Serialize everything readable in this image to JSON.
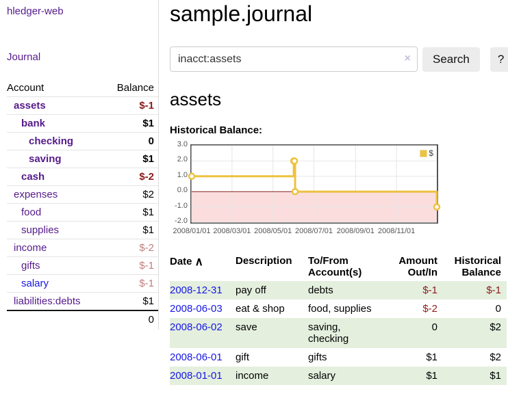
{
  "sidebar": {
    "brand": "hledger-web",
    "nav": {
      "journal_label": "Journal"
    },
    "accounts_table": {
      "headers": {
        "account": "Account",
        "balance": "Balance"
      },
      "rows": [
        {
          "name": "assets",
          "depth": 1,
          "bold": true,
          "balance": "$-1",
          "negative": "strong"
        },
        {
          "name": "bank",
          "depth": 2,
          "bold": true,
          "balance": "$1",
          "negative": null
        },
        {
          "name": "checking",
          "depth": 3,
          "bold": true,
          "balance": "0",
          "negative": null
        },
        {
          "name": "saving",
          "depth": 3,
          "bold": true,
          "balance": "$1",
          "negative": null
        },
        {
          "name": "cash",
          "depth": 2,
          "bold": true,
          "balance": "$-2",
          "negative": "strong"
        },
        {
          "name": "expenses",
          "depth": 1,
          "bold": false,
          "balance": "$2",
          "negative": null
        },
        {
          "name": "food",
          "depth": 2,
          "bold": false,
          "balance": "$1",
          "negative": null
        },
        {
          "name": "supplies",
          "depth": 2,
          "bold": false,
          "balance": "$1",
          "negative": null
        },
        {
          "name": "income",
          "depth": 1,
          "bold": false,
          "balance": "$-2",
          "negative": "soft"
        },
        {
          "name": "gifts",
          "depth": 2,
          "bold": false,
          "balance": "$-1",
          "negative": "soft"
        },
        {
          "name": "salary",
          "depth": 2,
          "bold": false,
          "balance": "$-1",
          "negative": "soft",
          "link_unvisited": true
        },
        {
          "name": "liabilities:debts",
          "depth": 1,
          "bold": false,
          "balance": "$1",
          "negative": null
        }
      ],
      "total": "0"
    }
  },
  "header": {
    "title": "sample.journal"
  },
  "search": {
    "value": "inacct:assets",
    "clear_icon": "×",
    "button_label": "Search",
    "help_label": "?"
  },
  "account_page": {
    "heading": "assets",
    "chart_label": "Historical Balance:"
  },
  "chart_data": {
    "type": "line",
    "title": "Historical Balance",
    "step": true,
    "legend_position": "top-right",
    "grid": true,
    "x_range": [
      "2008-01-01",
      "2008-12-31"
    ],
    "ylim": [
      -2,
      3
    ],
    "series": [
      {
        "name": "$",
        "color": "#edc240",
        "points": [
          [
            "2008-01-01",
            1
          ],
          [
            "2008-06-01",
            2
          ],
          [
            "2008-06-02",
            2
          ],
          [
            "2008-06-03",
            0
          ],
          [
            "2008-12-31",
            -1
          ]
        ]
      }
    ],
    "y_ticks": [
      {
        "label": "3.0",
        "value": 3
      },
      {
        "label": "2.0",
        "value": 2
      },
      {
        "label": "1.0",
        "value": 1
      },
      {
        "label": "0.0",
        "value": 0
      },
      {
        "label": "-1.0",
        "value": -1
      },
      {
        "label": "-2.0",
        "value": -2
      }
    ],
    "x_ticks": [
      {
        "label": "2008/01/01",
        "date": "2008-01-01"
      },
      {
        "label": "2008/03/01",
        "date": "2008-03-01"
      },
      {
        "label": "2008/05/01",
        "date": "2008-05-01"
      },
      {
        "label": "2008/07/01",
        "date": "2008-07-01"
      },
      {
        "label": "2008/09/01",
        "date": "2008-09-01"
      },
      {
        "label": "2008/11/01",
        "date": "2008-11-01"
      }
    ],
    "colors": {
      "line": "#edc240",
      "marker_fill": "#ffffff",
      "grid": "#e6e6e6",
      "negative_fill": "#fbdddd",
      "zero_line": "#8b2020",
      "border": "#555555"
    }
  },
  "register": {
    "headers": [
      "Date",
      "Description",
      "To/From Account(s)",
      "Amount Out/In",
      "Historical Balance"
    ],
    "sort_indicator": "∧",
    "rows": [
      {
        "date": "2008-12-31",
        "description": "pay off",
        "accounts": "debts",
        "amount": "$-1",
        "amount_negative": true,
        "balance": "$-1",
        "balance_negative": true
      },
      {
        "date": "2008-06-03",
        "description": "eat & shop",
        "accounts": "food, supplies",
        "amount": "$-2",
        "amount_negative": true,
        "balance": "0",
        "balance_negative": false
      },
      {
        "date": "2008-06-02",
        "description": "save",
        "accounts": "saving, checking",
        "amount": "0",
        "amount_negative": false,
        "balance": "$2",
        "balance_negative": false
      },
      {
        "date": "2008-06-01",
        "description": "gift",
        "accounts": "gifts",
        "amount": "$1",
        "amount_negative": false,
        "balance": "$2",
        "balance_negative": false
      },
      {
        "date": "2008-01-01",
        "description": "income",
        "accounts": "salary",
        "amount": "$1",
        "amount_negative": false,
        "balance": "$1",
        "balance_negative": false
      }
    ]
  },
  "colors": {
    "link_visited": "#551a8b",
    "link_unvisited": "#1616e6",
    "negative_strong": "#8b1a1a",
    "negative_soft": "#c17d7d",
    "row_stripe_green": "#e4efde",
    "button_bg": "#ececec"
  }
}
